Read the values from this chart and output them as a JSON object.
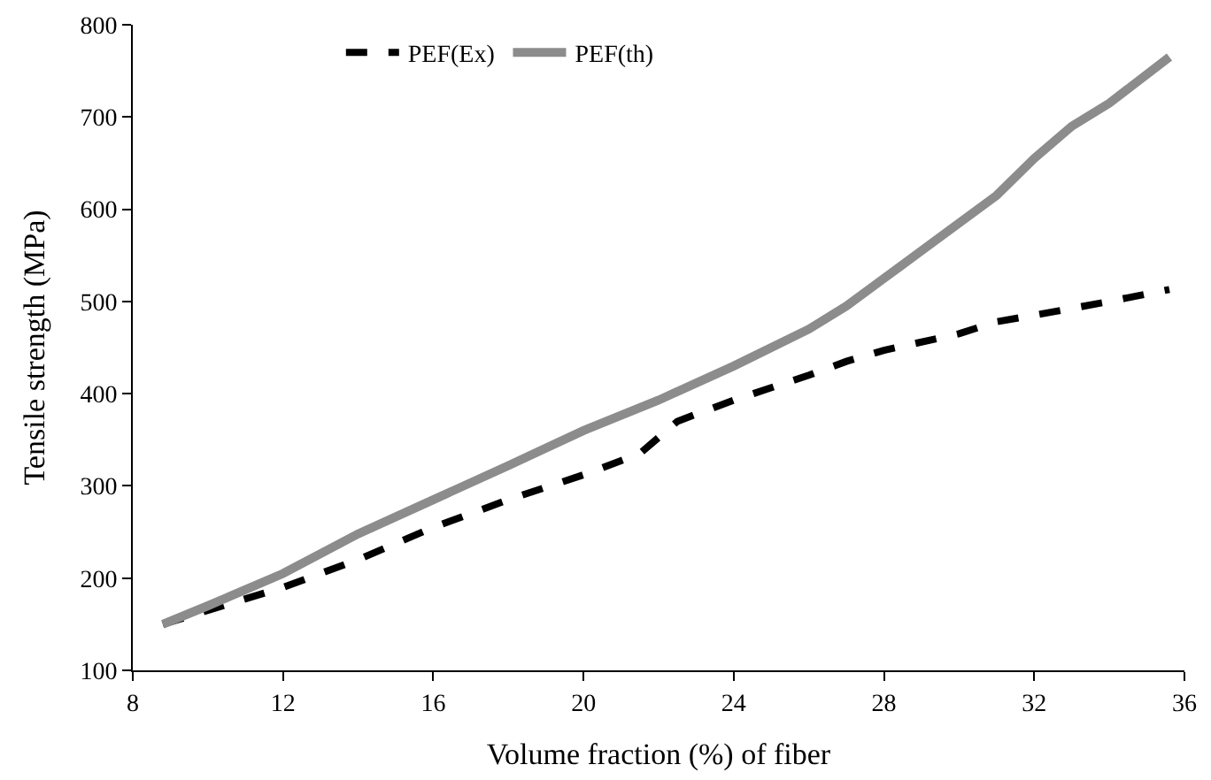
{
  "chart_data": {
    "type": "line",
    "xlabel": "Volume fraction (%) of fiber",
    "ylabel": "Tensile strength (MPa)",
    "xlim": [
      8,
      36
    ],
    "xticks": [
      8,
      12,
      16,
      20,
      24,
      28,
      32,
      36
    ],
    "ylim": [
      100,
      800
    ],
    "yticks": [
      100,
      200,
      300,
      400,
      500,
      600,
      700,
      800
    ],
    "legend": "top",
    "marker": "none",
    "series": [
      {
        "name": "PEF(Ex)",
        "color": "#000000",
        "line_style": "dashed",
        "x": [
          8.8,
          10,
          12,
          14,
          16,
          18,
          20,
          21.5,
          22.5,
          24,
          26,
          27,
          28,
          30,
          31,
          32,
          34,
          35.6
        ],
        "values": [
          150,
          165,
          190,
          220,
          255,
          285,
          312,
          335,
          370,
          393,
          420,
          435,
          447,
          465,
          478,
          485,
          500,
          513
        ]
      },
      {
        "name": "PEF(th)",
        "color": "#8c8c8c",
        "line_style": "solid",
        "x": [
          8.8,
          10,
          12,
          14,
          16,
          18,
          20,
          22,
          24,
          26,
          27,
          28,
          29,
          30,
          31,
          32,
          33,
          34,
          35.6
        ],
        "values": [
          150,
          170,
          205,
          248,
          285,
          322,
          360,
          393,
          430,
          470,
          495,
          525,
          555,
          585,
          615,
          655,
          690,
          715,
          765
        ]
      }
    ]
  }
}
